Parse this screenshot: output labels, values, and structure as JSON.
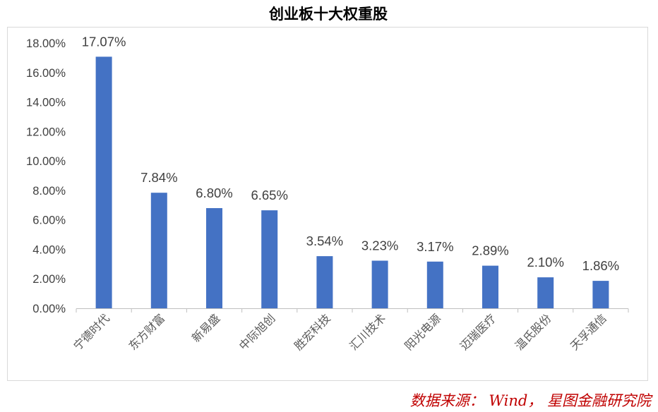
{
  "chart_data": {
    "type": "bar",
    "title": "创业板十大权重股",
    "categories": [
      "宁德时代",
      "东方财富",
      "新易盛",
      "中际旭创",
      "胜宏科技",
      "汇川技术",
      "阳光电源",
      "迈瑞医疗",
      "温氏股份",
      "天孚通信"
    ],
    "values": [
      17.07,
      7.84,
      6.8,
      6.65,
      3.54,
      3.23,
      3.17,
      2.89,
      2.1,
      1.86
    ],
    "data_labels": [
      "17.07%",
      "7.84%",
      "6.80%",
      "6.65%",
      "3.54%",
      "3.23%",
      "3.17%",
      "2.89%",
      "2.10%",
      "1.86%"
    ],
    "ylim": [
      0,
      18
    ],
    "yticks": [
      "0.00%",
      "2.00%",
      "4.00%",
      "6.00%",
      "8.00%",
      "10.00%",
      "12.00%",
      "14.00%",
      "16.00%",
      "18.00%"
    ],
    "grid": false,
    "legend": "none",
    "bar_color": "#4472c4"
  },
  "source_note": "数据来源： Wind， 星图金融研究院",
  "colors": {
    "source_text": "#c00000",
    "axis": "#bfbfbf",
    "frame": "#d9d9d9"
  }
}
